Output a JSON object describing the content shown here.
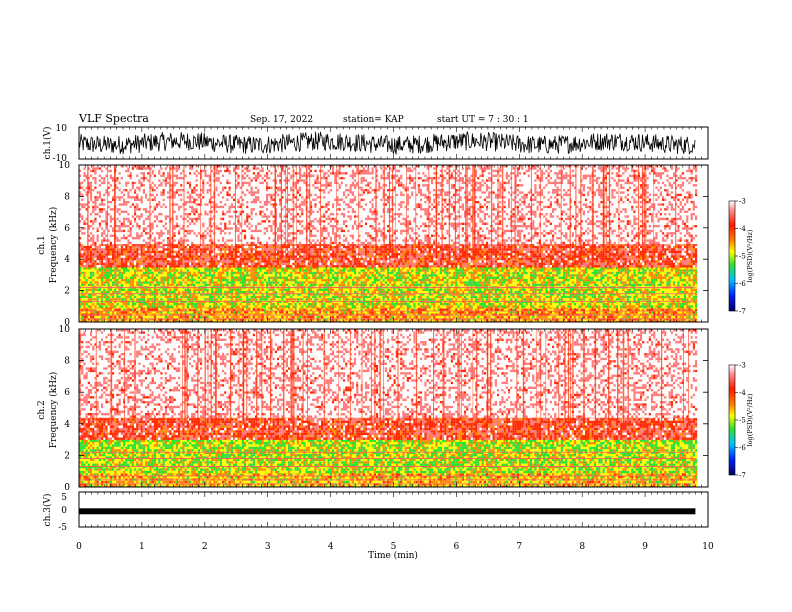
{
  "header": {
    "title": "VLF Spectra",
    "date": "Sep. 17, 2022",
    "station": "station= KAP",
    "start": "start  UT  =    7 : 30 : 1"
  },
  "colors": {
    "low": "#000080",
    "blue": "#0040ff",
    "green": "#30e030",
    "yellow": "#ffff00",
    "red": "#ff2a00",
    "white": "#ffffff"
  },
  "chart_data": [
    {
      "type": "line",
      "panel": "ch1-waveform",
      "ylabel": "ch.1(V)",
      "ylim": [
        -10,
        10
      ],
      "ytick_labels": [
        "10",
        "-10"
      ],
      "x_range_min": [
        0,
        9.8
      ],
      "description_values": {
        "typical_min": -6,
        "typical_max": 6
      }
    },
    {
      "type": "heatmap",
      "panel": "ch1-spectrogram",
      "ylabel": "ch.1",
      "ylabel2": "Frequency  (kHz)",
      "ylim": [
        0,
        10
      ],
      "ytick_labels": [
        "0",
        "2",
        "4",
        "6",
        "8",
        "10"
      ],
      "colorbar": {
        "label": "log(PSD)(V²/Hz)",
        "range": [
          -7,
          -3
        ],
        "tick_labels": [
          "-3",
          "-4",
          "-5",
          "-6",
          "-7"
        ]
      },
      "bands": [
        {
          "from_khz": 0,
          "to_khz": 1,
          "level": -4.5
        },
        {
          "from_khz": 1,
          "to_khz": 3.5,
          "level": -4.8
        },
        {
          "from_khz": 3.5,
          "to_khz": 5,
          "level": -3.8
        },
        {
          "from_khz": 5,
          "to_khz": 10,
          "level": -3.2
        }
      ]
    },
    {
      "type": "heatmap",
      "panel": "ch2-spectrogram",
      "ylabel": "ch.2",
      "ylabel2": "Frequency  (kHz)",
      "ylim": [
        0,
        10
      ],
      "ytick_labels": [
        "0",
        "2",
        "4",
        "6",
        "8",
        "10"
      ],
      "colorbar": {
        "label": "log(PSD)(V²/Hz)",
        "range": [
          -7,
          -3
        ],
        "tick_labels": [
          "-3",
          "-4",
          "-5",
          "-6",
          "-7"
        ]
      },
      "bands": [
        {
          "from_khz": 0,
          "to_khz": 1,
          "level": -4.6
        },
        {
          "from_khz": 1,
          "to_khz": 3,
          "level": -4.9
        },
        {
          "from_khz": 3,
          "to_khz": 4.5,
          "level": -3.8
        },
        {
          "from_khz": 4.5,
          "to_khz": 10,
          "level": -3.2
        }
      ]
    },
    {
      "type": "line",
      "panel": "ch3-waveform",
      "ylabel": "ch.3(V)",
      "ylim": [
        -5,
        5
      ],
      "ytick_labels": [
        "5",
        "0",
        "-5"
      ],
      "level_v": -0.5
    }
  ],
  "xaxis": {
    "label": "Time  (min)",
    "range": [
      0,
      10
    ],
    "data_end_min": 9.8,
    "tick_labels": [
      "0",
      "1",
      "2",
      "3",
      "4",
      "5",
      "6",
      "7",
      "8",
      "9",
      "10"
    ]
  }
}
